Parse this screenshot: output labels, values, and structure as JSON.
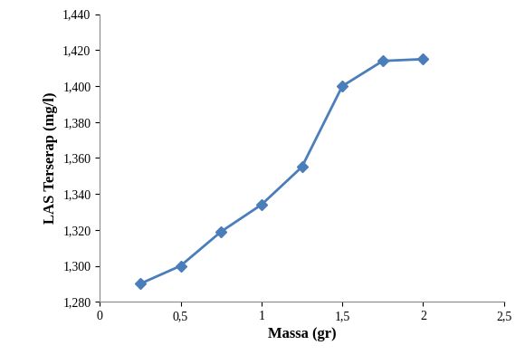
{
  "chart_data": {
    "type": "line",
    "x": [
      0.25,
      0.5,
      0.75,
      1.0,
      1.25,
      1.5,
      1.75,
      2.0
    ],
    "values": [
      1.29,
      1.3,
      1.319,
      1.334,
      1.355,
      1.4,
      1.414,
      1.415
    ],
    "color": "#4a7ebb",
    "marker": "diamond",
    "line_style": "solid",
    "x_label": "Massa (gr)",
    "y_label": "LAS Terserap (mg/l)",
    "xlim": [
      0,
      2.5
    ],
    "xticks": [
      0,
      {
        "value": 0.5,
        "label": "0,5"
      },
      1,
      {
        "value": 1.5,
        "label": "1,5"
      },
      2,
      {
        "value": 2.5,
        "label": "2,5"
      }
    ],
    "ylim": [
      1.28,
      1.44
    ],
    "yticks": [
      {
        "value": 1.28,
        "label": "1,280"
      },
      {
        "value": 1.3,
        "label": "1,300"
      },
      {
        "value": 1.32,
        "label": "1,320"
      },
      {
        "value": 1.34,
        "label": "1,340"
      },
      {
        "value": 1.36,
        "label": "1,360"
      },
      {
        "value": 1.38,
        "label": "1,380"
      },
      {
        "value": 1.4,
        "label": "1,400"
      },
      {
        "value": 1.42,
        "label": "1,420"
      },
      {
        "value": 1.44,
        "label": "1,440"
      }
    ],
    "grid": false
  }
}
